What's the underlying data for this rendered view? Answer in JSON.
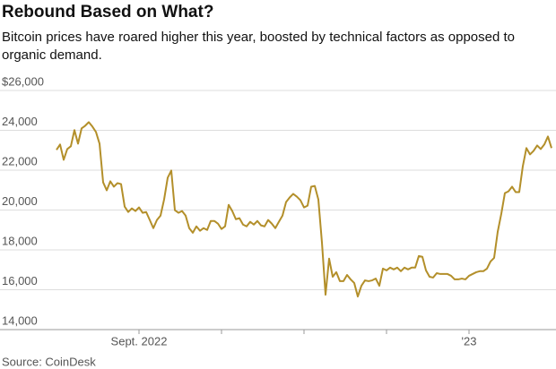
{
  "chart_data": {
    "type": "line",
    "title": "Rebound Based on What?",
    "subtitle": "Bitcoin prices have roared higher this year, boosted by technical factors as opposed to organic demand.",
    "source": "Source: CoinDesk",
    "categories": [
      null,
      null,
      null,
      null,
      null,
      null,
      null,
      null,
      null,
      null,
      null,
      null,
      null,
      null,
      null,
      null,
      null,
      null,
      null,
      null,
      null,
      null,
      null,
      "Sept. 2022",
      null,
      null,
      null,
      null,
      null,
      null,
      null,
      null,
      null,
      null,
      null,
      null,
      null,
      null,
      null,
      null,
      null,
      null,
      null,
      null,
      null,
      null,
      null,
      null,
      null,
      null,
      null,
      null,
      null,
      null,
      null,
      null,
      null,
      null,
      null,
      null,
      null,
      null,
      null,
      null,
      null,
      null,
      null,
      null,
      null,
      null,
      null,
      null,
      null,
      null,
      null,
      null,
      null,
      null,
      null,
      null,
      null,
      null,
      null,
      null,
      null,
      null,
      null,
      null,
      null,
      null,
      null,
      null,
      null,
      null,
      null,
      null,
      null,
      null,
      null,
      null,
      null,
      null,
      null,
      null,
      null,
      null,
      null,
      null,
      null,
      null,
      null,
      null,
      null,
      null,
      null,
      "'23",
      null,
      null,
      null,
      null,
      null,
      null,
      null,
      null,
      null,
      null,
      null,
      null,
      null,
      null,
      null,
      null,
      null,
      null,
      null,
      null,
      null,
      null,
      null
    ],
    "xticks": [
      23,
      46,
      69,
      92,
      115
    ],
    "series": [
      {
        "name": "Bitcoin",
        "color": "#b38f2a",
        "values": [
          23020,
          23290,
          22520,
          23060,
          23200,
          24010,
          23330,
          24100,
          24230,
          24410,
          24190,
          23920,
          23330,
          21390,
          20990,
          21440,
          21170,
          21350,
          21300,
          20170,
          19900,
          20080,
          19950,
          20130,
          19860,
          19900,
          19500,
          19090,
          19500,
          19720,
          20530,
          21620,
          21980,
          19990,
          19860,
          19950,
          19720,
          19090,
          18860,
          19180,
          18960,
          19090,
          19000,
          19450,
          19450,
          19320,
          19050,
          19180,
          20260,
          19950,
          19540,
          19590,
          19270,
          19180,
          19410,
          19270,
          19450,
          19230,
          19180,
          19500,
          19320,
          19090,
          19410,
          19720,
          20400,
          20630,
          20810,
          20670,
          20490,
          20130,
          20220,
          21170,
          21210,
          20530,
          18370,
          15750,
          17560,
          16650,
          16880,
          16430,
          16430,
          16740,
          16520,
          16340,
          15660,
          16200,
          16470,
          16430,
          16470,
          16560,
          16200,
          17060,
          16970,
          17110,
          17020,
          17110,
          16930,
          17110,
          17020,
          17110,
          17110,
          17690,
          17650,
          16970,
          16650,
          16610,
          16830,
          16790,
          16790,
          16790,
          16700,
          16520,
          16520,
          16560,
          16520,
          16700,
          16790,
          16880,
          16930,
          16930,
          17060,
          17420,
          17600,
          18910,
          19810,
          20850,
          20940,
          21170,
          20900,
          20900,
          22200,
          23110,
          22790,
          22970,
          23240,
          23060,
          23290,
          23690,
          23110
        ]
      }
    ],
    "ylim": [
      14000,
      26000
    ],
    "yticks": [
      {
        "value": 26000,
        "label": "$26,000"
      },
      {
        "value": 24000,
        "label": "24,000"
      },
      {
        "value": 22000,
        "label": "22,000"
      },
      {
        "value": 20000,
        "label": "20,000"
      },
      {
        "value": 18000,
        "label": "18,000"
      },
      {
        "value": 16000,
        "label": "16,000"
      },
      {
        "value": 14000,
        "label": "14,000"
      }
    ],
    "grid": true
  }
}
